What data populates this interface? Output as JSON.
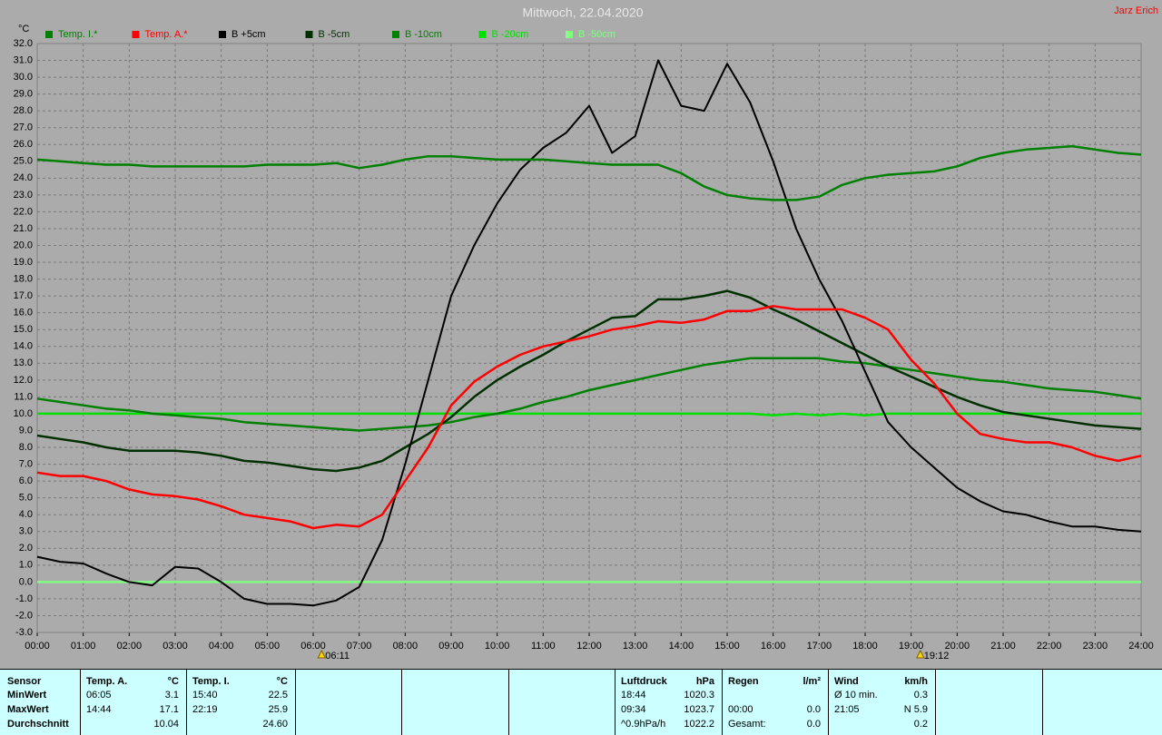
{
  "chart_data": {
    "type": "line",
    "title": "Mittwoch, 22.04.2020",
    "author": "Jarz Erich",
    "y_unit": "°C",
    "x": [
      0,
      0.5,
      1,
      1.5,
      2,
      2.5,
      3,
      3.5,
      4,
      4.5,
      5,
      5.5,
      6,
      6.5,
      7,
      7.5,
      8,
      8.5,
      9,
      9.5,
      10,
      10.5,
      11,
      11.5,
      12,
      12.5,
      13,
      13.5,
      14,
      14.5,
      15,
      15.5,
      16,
      16.5,
      17,
      17.5,
      18,
      18.5,
      19,
      19.5,
      20,
      20.5,
      21,
      21.5,
      22,
      22.5,
      23,
      23.5,
      24
    ],
    "xlim": [
      0,
      24
    ],
    "xticks": [
      {
        "value": 0,
        "label": "00:00"
      },
      {
        "value": 1,
        "label": "01:00"
      },
      {
        "value": 2,
        "label": "02:00"
      },
      {
        "value": 3,
        "label": "03:00"
      },
      {
        "value": 4,
        "label": "04:00"
      },
      {
        "value": 5,
        "label": "05:00"
      },
      {
        "value": 6,
        "label": "06:00"
      },
      {
        "value": 7,
        "label": "07:00"
      },
      {
        "value": 8,
        "label": "08:00"
      },
      {
        "value": 9,
        "label": "09:00"
      },
      {
        "value": 10,
        "label": "10:00"
      },
      {
        "value": 11,
        "label": "11:00"
      },
      {
        "value": 12,
        "label": "12:00"
      },
      {
        "value": 13,
        "label": "13:00"
      },
      {
        "value": 14,
        "label": "14:00"
      },
      {
        "value": 15,
        "label": "15:00"
      },
      {
        "value": 16,
        "label": "16:00"
      },
      {
        "value": 17,
        "label": "17:00"
      },
      {
        "value": 18,
        "label": "18:00"
      },
      {
        "value": 19,
        "label": "19:00"
      },
      {
        "value": 20,
        "label": "20:00"
      },
      {
        "value": 21,
        "label": "21:00"
      },
      {
        "value": 22,
        "label": "22:00"
      },
      {
        "value": 23,
        "label": "23:00"
      },
      {
        "value": 24,
        "label": "24:00"
      }
    ],
    "ylim": [
      -3,
      32
    ],
    "yticks": [
      {
        "value": -3,
        "label": "-3.0"
      },
      {
        "value": -2,
        "label": "-2.0"
      },
      {
        "value": -1,
        "label": "-1.0"
      },
      {
        "value": 0,
        "label": "0.0"
      },
      {
        "value": 1,
        "label": "1.0"
      },
      {
        "value": 2,
        "label": "2.0"
      },
      {
        "value": 3,
        "label": "3.0"
      },
      {
        "value": 4,
        "label": "4.0"
      },
      {
        "value": 5,
        "label": "5.0"
      },
      {
        "value": 6,
        "label": "6.0"
      },
      {
        "value": 7,
        "label": "7.0"
      },
      {
        "value": 8,
        "label": "8.0"
      },
      {
        "value": 9,
        "label": "9.0"
      },
      {
        "value": 10,
        "label": "10.0"
      },
      {
        "value": 11,
        "label": "11.0"
      },
      {
        "value": 12,
        "label": "12.0"
      },
      {
        "value": 13,
        "label": "13.0"
      },
      {
        "value": 14,
        "label": "14.0"
      },
      {
        "value": 15,
        "label": "15.0"
      },
      {
        "value": 16,
        "label": "16.0"
      },
      {
        "value": 17,
        "label": "17.0"
      },
      {
        "value": 18,
        "label": "18.0"
      },
      {
        "value": 19,
        "label": "19.0"
      },
      {
        "value": 20,
        "label": "20.0"
      },
      {
        "value": 21,
        "label": "21.0"
      },
      {
        "value": 22,
        "label": "22.0"
      },
      {
        "value": 23,
        "label": "23.0"
      },
      {
        "value": 24,
        "label": "24.0"
      },
      {
        "value": 25,
        "label": "25.0"
      },
      {
        "value": 26,
        "label": "26.0"
      },
      {
        "value": 27,
        "label": "27.0"
      },
      {
        "value": 28,
        "label": "28.0"
      },
      {
        "value": 29,
        "label": "29.0"
      },
      {
        "value": 30,
        "label": "30.0"
      },
      {
        "value": 31,
        "label": "31.0"
      },
      {
        "value": 32,
        "label": "32.0"
      }
    ],
    "grid": true,
    "annotations": [
      {
        "x": 6.183,
        "label": "06:11"
      },
      {
        "x": 19.2,
        "label": "19:12"
      }
    ],
    "series": [
      {
        "name": "Temp. I.*",
        "color": "#008000",
        "values": [
          25.1,
          25.0,
          24.9,
          24.8,
          24.8,
          24.7,
          24.7,
          24.7,
          24.7,
          24.7,
          24.8,
          24.8,
          24.8,
          24.9,
          24.6,
          24.8,
          25.1,
          25.3,
          25.3,
          25.2,
          25.1,
          25.1,
          25.1,
          25.0,
          24.9,
          24.8,
          24.8,
          24.8,
          24.3,
          23.5,
          23.0,
          22.8,
          22.7,
          22.7,
          22.9,
          23.6,
          24.0,
          24.2,
          24.3,
          24.4,
          24.7,
          25.2,
          25.5,
          25.7,
          25.8,
          25.9,
          25.7,
          25.5,
          25.4
        ]
      },
      {
        "name": "Temp. A.*",
        "color": "#ff0000",
        "values": [
          6.5,
          6.3,
          6.3,
          6.0,
          5.5,
          5.2,
          5.1,
          4.9,
          4.5,
          4.0,
          3.8,
          3.6,
          3.2,
          3.4,
          3.3,
          4.0,
          6.0,
          8.0,
          10.5,
          11.9,
          12.8,
          13.5,
          14.0,
          14.3,
          14.6,
          15.0,
          15.2,
          15.5,
          15.4,
          15.6,
          16.1,
          16.1,
          16.4,
          16.2,
          16.2,
          16.2,
          15.7,
          15.0,
          13.2,
          11.8,
          10.0,
          8.8,
          8.5,
          8.3,
          8.3,
          8.0,
          7.5,
          7.2,
          7.5
        ]
      },
      {
        "name": "B +5cm",
        "color": "#000000",
        "values": [
          1.5,
          1.2,
          1.1,
          0.5,
          0.0,
          -0.2,
          0.9,
          0.8,
          0.0,
          -1.0,
          -1.3,
          -1.3,
          -1.4,
          -1.1,
          -0.3,
          2.5,
          7.0,
          12.0,
          17.0,
          20.0,
          22.5,
          24.5,
          25.8,
          26.7,
          28.3,
          25.5,
          26.5,
          31.0,
          28.3,
          28.0,
          30.8,
          28.5,
          25.0,
          21.0,
          18.0,
          15.5,
          12.5,
          9.5,
          8.0,
          6.8,
          5.6,
          4.8,
          4.2,
          4.0,
          3.6,
          3.3,
          3.3,
          3.1,
          3.0
        ]
      },
      {
        "name": "B -5cm",
        "color": "#003000",
        "values": [
          8.7,
          8.5,
          8.3,
          8.0,
          7.8,
          7.8,
          7.8,
          7.7,
          7.5,
          7.2,
          7.1,
          6.9,
          6.7,
          6.6,
          6.8,
          7.2,
          8.0,
          8.8,
          9.8,
          11.0,
          12.0,
          12.8,
          13.5,
          14.3,
          15.0,
          15.7,
          15.8,
          16.8,
          16.8,
          17.0,
          17.3,
          16.9,
          16.2,
          15.6,
          14.9,
          14.2,
          13.5,
          12.8,
          12.2,
          11.6,
          11.0,
          10.5,
          10.1,
          9.9,
          9.7,
          9.5,
          9.3,
          9.2,
          9.1
        ]
      },
      {
        "name": "B -10cm",
        "color": "#008000",
        "values": [
          10.9,
          10.7,
          10.5,
          10.3,
          10.2,
          10.0,
          9.9,
          9.8,
          9.7,
          9.5,
          9.4,
          9.3,
          9.2,
          9.1,
          9.0,
          9.1,
          9.2,
          9.3,
          9.5,
          9.8,
          10.0,
          10.3,
          10.7,
          11.0,
          11.4,
          11.7,
          12.0,
          12.3,
          12.6,
          12.9,
          13.1,
          13.3,
          13.3,
          13.3,
          13.3,
          13.1,
          13.0,
          12.8,
          12.6,
          12.4,
          12.2,
          12.0,
          11.9,
          11.7,
          11.5,
          11.4,
          11.3,
          11.1,
          10.9
        ]
      },
      {
        "name": "B -20cm",
        "color": "#00e000",
        "values": [
          10.0,
          10.0,
          10.0,
          10.0,
          10.0,
          10.0,
          10.0,
          10.0,
          10.0,
          10.0,
          10.0,
          10.0,
          10.0,
          10.0,
          10.0,
          10.0,
          10.0,
          10.0,
          10.0,
          10.0,
          10.0,
          10.0,
          10.0,
          10.0,
          10.0,
          10.0,
          10.0,
          10.0,
          10.0,
          10.0,
          10.0,
          10.0,
          9.9,
          10.0,
          9.9,
          10.0,
          9.9,
          10.0,
          10.0,
          10.0,
          10.0,
          10.0,
          10.0,
          10.0,
          10.0,
          10.0,
          10.0,
          10.0,
          10.0
        ]
      },
      {
        "name": "B -50cm",
        "color": "#80ff80",
        "values": [
          0,
          0,
          0,
          0,
          0,
          0,
          0,
          0,
          0,
          0,
          0,
          0,
          0,
          0,
          0,
          0,
          0,
          0,
          0,
          0,
          0,
          0,
          0,
          0,
          0,
          0,
          0,
          0,
          0,
          0,
          0,
          0,
          0,
          0,
          0,
          0,
          0,
          0,
          0,
          0,
          0,
          0,
          0,
          0,
          0,
          0,
          0,
          0,
          0
        ]
      }
    ]
  },
  "table": {
    "label_column": [
      "Sensor",
      "MinWert",
      "MaxWert",
      "Durchschnitt"
    ],
    "blocks": [
      {
        "title": "Temp. A.",
        "unit": "°C",
        "rows": [
          [
            "06:05",
            "3.1"
          ],
          [
            "14:44",
            "17.1"
          ],
          [
            null,
            "10.04"
          ]
        ]
      },
      {
        "title": "Temp. I.",
        "unit": "°C",
        "rows": [
          [
            "15:40",
            "22.5"
          ],
          [
            "22:19",
            "25.9"
          ],
          [
            null,
            "24.60"
          ]
        ]
      },
      {
        "title": "Luftdruck",
        "unit": "hPa",
        "rows": [
          [
            "18:44",
            "1020.3"
          ],
          [
            "09:34",
            "1023.7"
          ],
          [
            "^0.9hPa/h",
            "1022.2"
          ]
        ]
      },
      {
        "title": "Regen",
        "unit": "l/m²",
        "rows": [
          [
            null,
            null
          ],
          [
            "00:00",
            "0.0"
          ],
          [
            "Gesamt:",
            "0.0"
          ]
        ]
      },
      {
        "title": "Wind",
        "unit": "km/h",
        "rows": [
          [
            "Ø 10 min.",
            "0.3"
          ],
          [
            "21:05",
            "N 5.9"
          ],
          [
            null,
            "0.2"
          ]
        ]
      }
    ]
  }
}
